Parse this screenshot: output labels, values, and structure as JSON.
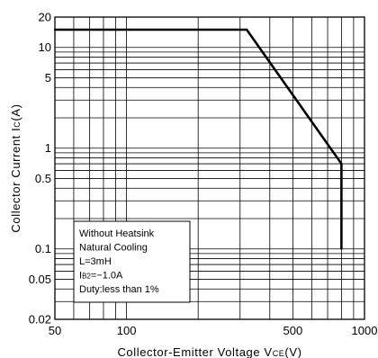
{
  "chart_data": {
    "type": "line",
    "scale": "log-log",
    "grid": true,
    "xlabel": {
      "main": "Collector-Emitter Voltage V",
      "sub": "CE",
      "unit": "(V)"
    },
    "ylabel": {
      "main": "Collector Current I",
      "sub": "C",
      "unit": "(A)"
    },
    "xlim": [
      50,
      1000
    ],
    "ylim": [
      0.02,
      20
    ],
    "x_ticks": [
      50,
      100,
      500,
      1000
    ],
    "x_tick_labels": [
      "50",
      "100",
      "500",
      "1000"
    ],
    "y_ticks": [
      0.02,
      0.05,
      0.1,
      0.5,
      1,
      5,
      10,
      20
    ],
    "y_tick_labels": [
      "0.02",
      "0.05",
      "0.1",
      "0.5",
      "1",
      "5",
      "10",
      "20"
    ],
    "series": [
      {
        "points": [
          {
            "x": 50,
            "y": 15
          },
          {
            "x": 320,
            "y": 15
          },
          {
            "x": 800,
            "y": 0.7
          },
          {
            "x": 800,
            "y": 0.1
          }
        ]
      }
    ],
    "annotation": {
      "lines": [
        {
          "text": "Without Heatsink"
        },
        {
          "text": "Natural Cooling"
        },
        {
          "text": "L=3mH"
        },
        {
          "pre": "I",
          "sub": "B2",
          "text": "=−1.0A"
        },
        {
          "text": "Duty:less than 1%"
        }
      ]
    },
    "colors": {
      "line": "#000000",
      "grid": "#000000",
      "background": "#ffffff"
    }
  }
}
